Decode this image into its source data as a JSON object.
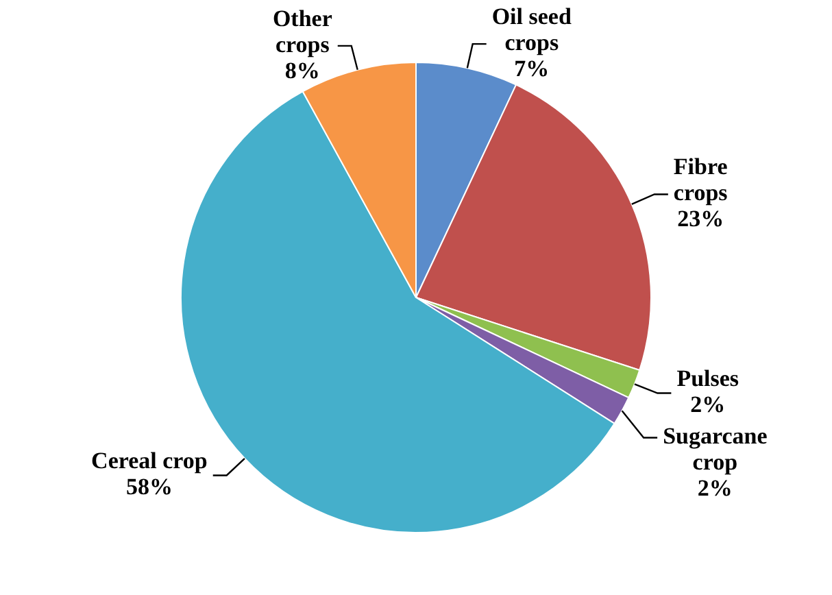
{
  "chart_data": {
    "type": "pie",
    "categories": [
      "Oil seed crops",
      "Fibre crops",
      "Pulses",
      "Sugarcane crop",
      "Cereal crop",
      "Other crops"
    ],
    "values": [
      7,
      23,
      2,
      2,
      58,
      8
    ],
    "value_labels": [
      "7%",
      "23%",
      "2%",
      "2%",
      "58%",
      "8%"
    ],
    "colors": [
      "#5b8ccb",
      "#c0504d",
      "#8fc04f",
      "#7e5ea6",
      "#45afcb",
      "#f79646"
    ],
    "legend": false
  }
}
